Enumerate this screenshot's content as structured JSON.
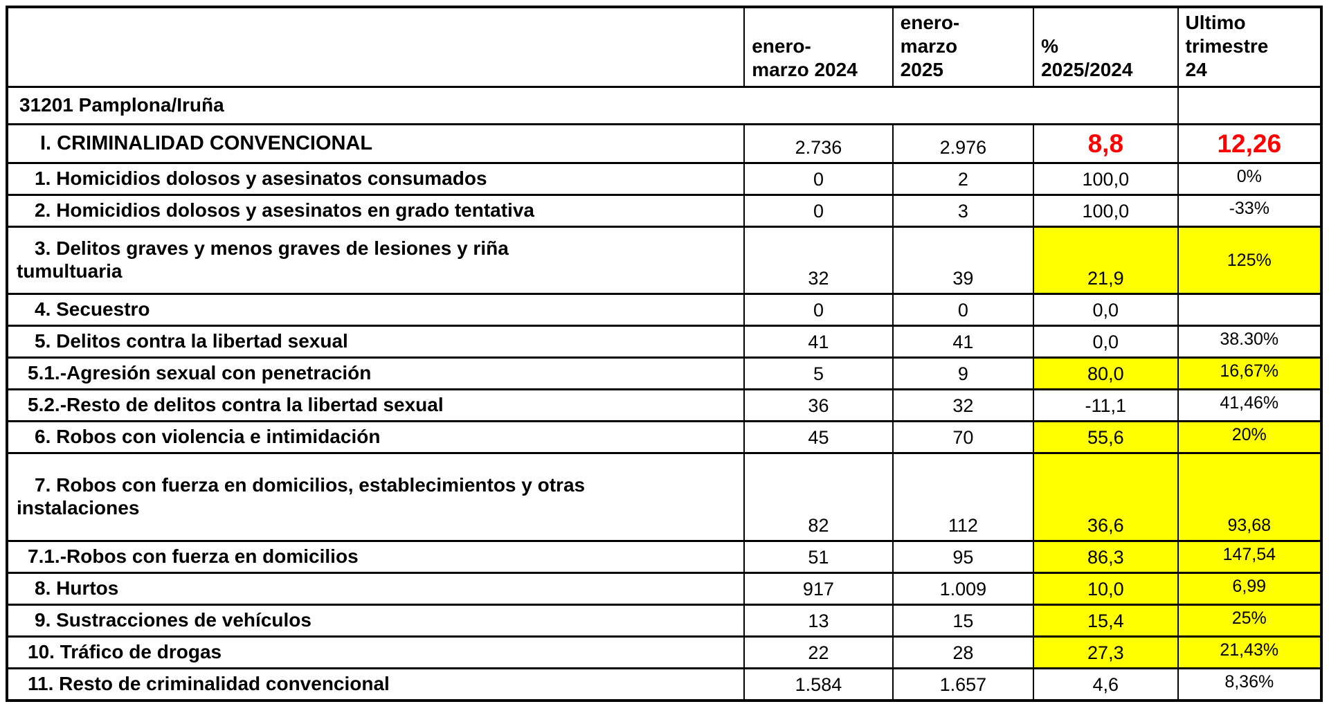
{
  "page": {
    "background": "#ffffff"
  },
  "colors": {
    "highlight_yellow": "#ffff00",
    "alert_red": "#ff0000",
    "border": "#000000",
    "text": "#000000"
  },
  "table": {
    "columns": {
      "labels": "",
      "c2024": "enero-\nmarzo 2024",
      "c2025": "enero-\nmarzo\n2025",
      "pct": "%\n2025/2024",
      "ultimo": "Ultimo\ntrimestre\n24"
    },
    "region": {
      "label": "31201 Pamplona/Iruña",
      "ultimo": ""
    },
    "rows": [
      {
        "label": "I. CRIMINALIDAD CONVENCIONAL",
        "v2024": "2.736",
        "v2025": "2.976",
        "pct": "8,8",
        "ultimo": "12,26",
        "pct_alert": true,
        "ultimo_alert": true
      },
      {
        "label": "1. Homicidios dolosos y asesinatos consumados",
        "v2024": "0",
        "v2025": "2",
        "pct": "100,0",
        "ultimo": "0%"
      },
      {
        "label": "2. Homicidios dolosos y asesinatos en grado tentativa",
        "v2024": "0",
        "v2025": "3",
        "pct": "100,0",
        "ultimo": "-33%"
      },
      {
        "label": "3. Delitos graves y menos graves de lesiones y riña\ntumultuaria",
        "v2024": "32",
        "v2025": "39",
        "pct": "21,9",
        "ultimo": "125%",
        "pct_highlight": true,
        "ultimo_highlight": true
      },
      {
        "label": "4. Secuestro",
        "v2024": "0",
        "v2025": "0",
        "pct": "0,0",
        "ultimo": ""
      },
      {
        "label": "5. Delitos contra la libertad sexual",
        "v2024": "41",
        "v2025": "41",
        "pct": "0,0",
        "ultimo": "38.30%"
      },
      {
        "label": "5.1.-Agresión sexual con penetración",
        "v2024": "5",
        "v2025": "9",
        "pct": "80,0",
        "ultimo": "16,67%",
        "pct_highlight": true,
        "ultimo_highlight": true
      },
      {
        "label": "5.2.-Resto de delitos contra la libertad sexual",
        "v2024": "36",
        "v2025": "32",
        "pct": "-11,1",
        "ultimo": "41,46%"
      },
      {
        "label": "6. Robos con violencia e intimidación",
        "v2024": "45",
        "v2025": "70",
        "pct": "55,6",
        "ultimo": "20%",
        "pct_highlight": true,
        "ultimo_highlight": true
      },
      {
        "label": "7. Robos con fuerza en domicilios, establecimientos y otras\ninstalaciones",
        "v2024": "82",
        "v2025": "112",
        "pct": "36,6",
        "ultimo": "93,68",
        "pct_highlight": true,
        "ultimo_highlight": true
      },
      {
        "label": "7.1.-Robos con fuerza en domicilios",
        "v2024": "51",
        "v2025": "95",
        "pct": "86,3",
        "ultimo": "147,54",
        "pct_highlight": true,
        "ultimo_highlight": true
      },
      {
        "label": "8. Hurtos",
        "v2024": "917",
        "v2025": "1.009",
        "pct": "10,0",
        "ultimo": "6,99",
        "pct_highlight": true,
        "ultimo_highlight": true
      },
      {
        "label": "9. Sustracciones de vehículos",
        "v2024": "13",
        "v2025": "15",
        "pct": "15,4",
        "ultimo": "25%",
        "pct_highlight": true,
        "ultimo_highlight": true
      },
      {
        "label": "10. Tráfico de drogas",
        "v2024": "22",
        "v2025": "28",
        "pct": "27,3",
        "ultimo": "21,43%",
        "pct_highlight": true,
        "ultimo_highlight": true
      },
      {
        "label": "11. Resto de criminalidad convencional",
        "v2024": "1.584",
        "v2025": "1.657",
        "pct": "4,6",
        "ultimo": "8,36%"
      }
    ]
  }
}
